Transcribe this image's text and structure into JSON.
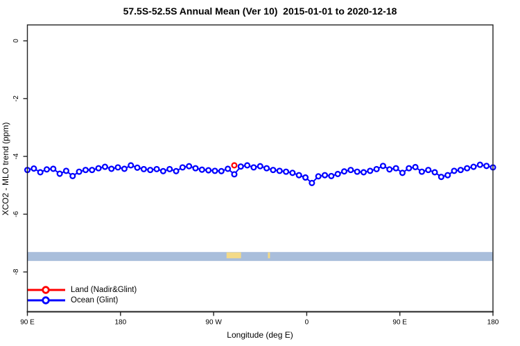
{
  "title": "57.5S-52.5S Annual Mean (Ver 10)  2015-01-01 to 2020-12-18",
  "chart_data": {
    "type": "line",
    "title": "57.5S-52.5S Annual Mean (Ver 10)  2015-01-01 to 2020-12-18",
    "xlabel": "Longitude (deg E)",
    "ylabel": "XCO2 - MLO trend (ppm)",
    "grid": false,
    "x_axis": {
      "axis_range_deg": [
        90,
        540
      ],
      "wrap_note": "longitude axis wraps: 90E -> 180 -> 90W -> 0 -> 90E -> 180",
      "ticks": [
        {
          "axis_deg": 90,
          "label": "90 E"
        },
        {
          "axis_deg": 180,
          "label": "180"
        },
        {
          "axis_deg": 270,
          "label": "90 W"
        },
        {
          "axis_deg": 360,
          "label": "0"
        },
        {
          "axis_deg": 450,
          "label": "90 E"
        },
        {
          "axis_deg": 540,
          "label": "180"
        }
      ]
    },
    "y_axis": {
      "ticks": [
        0,
        -2,
        -4,
        -6,
        -8
      ],
      "range": [
        -9.4,
        0.55
      ]
    },
    "series": [
      {
        "name": "Land (Nadir&Glint)",
        "color": "#ff0000",
        "marker": "open-circle",
        "points": [
          {
            "axis_deg": 290,
            "lon_deg_e": -70,
            "value": -4.31
          }
        ]
      },
      {
        "name": "Ocean (Glint)",
        "color": "#0000ff",
        "marker": "open-circle",
        "start_axis_deg": 90,
        "step_deg": 6.25,
        "values": [
          -4.47,
          -4.42,
          -4.55,
          -4.45,
          -4.43,
          -4.6,
          -4.5,
          -4.68,
          -4.53,
          -4.47,
          -4.47,
          -4.41,
          -4.36,
          -4.43,
          -4.38,
          -4.43,
          -4.31,
          -4.39,
          -4.44,
          -4.47,
          -4.44,
          -4.51,
          -4.44,
          -4.51,
          -4.38,
          -4.34,
          -4.41,
          -4.46,
          -4.48,
          -4.5,
          -4.51,
          -4.43,
          -4.62,
          -4.35,
          -4.31,
          -4.38,
          -4.34,
          -4.41,
          -4.47,
          -4.5,
          -4.53,
          -4.57,
          -4.65,
          -4.73,
          -4.92,
          -4.69,
          -4.65,
          -4.68,
          -4.61,
          -4.52,
          -4.47,
          -4.53,
          -4.55,
          -4.5,
          -4.44,
          -4.33,
          -4.45,
          -4.41,
          -4.57,
          -4.41,
          -4.37,
          -4.53,
          -4.47,
          -4.55,
          -4.71,
          -4.65,
          -4.5,
          -4.47,
          -4.41,
          -4.36,
          -4.29,
          -4.33,
          -4.38
        ]
      }
    ],
    "map_strip": {
      "description": "latitude-band world map strip (ocean with land patches)",
      "ocean_color": "#a9bedb",
      "land_color": "#f3da88",
      "value_top": -7.31,
      "value_bottom": -7.62,
      "land_patches_axis_deg": [
        [
          282.5,
          296.5
        ],
        [
          322.5,
          324.5
        ]
      ]
    },
    "legend": {
      "position": "bottom-left",
      "items": [
        {
          "label": "Land (Nadir&Glint)",
          "color": "#ff0000"
        },
        {
          "label": "Ocean (Glint)",
          "color": "#0000ff"
        }
      ]
    },
    "axis_color": "#222222"
  }
}
